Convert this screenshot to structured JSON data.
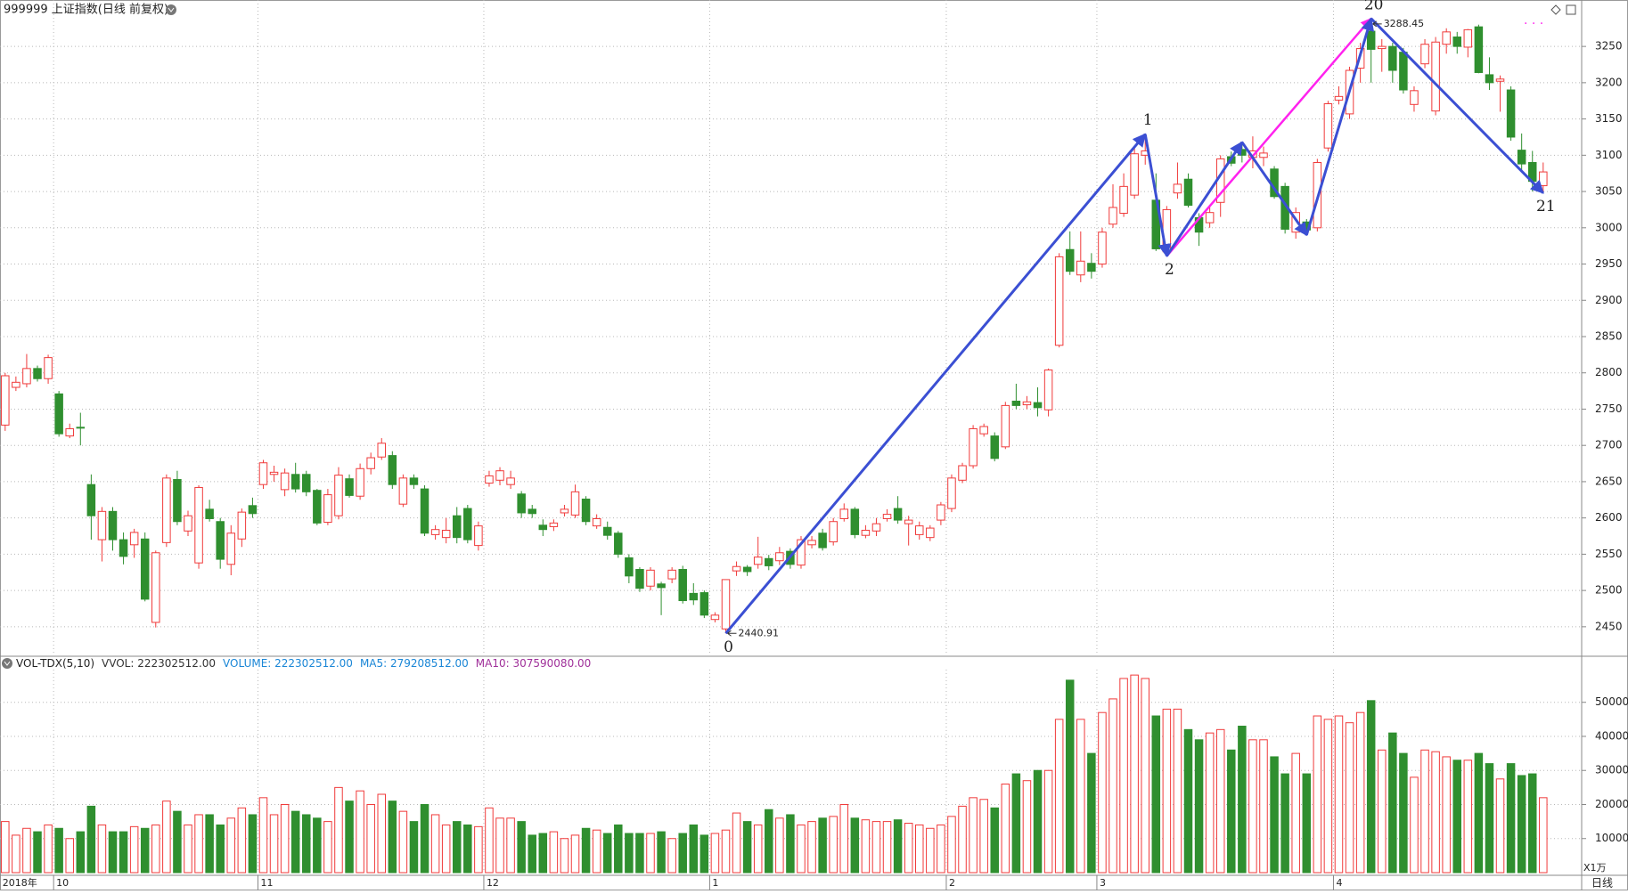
{
  "chart_data": [
    {
      "type": "candlestick",
      "title": "999999 上证指数(日线 前复权)",
      "categories": [
        "2018年",
        null,
        null,
        null,
        null,
        "10",
        null,
        null,
        null,
        null,
        null,
        null,
        null,
        null,
        null,
        null,
        null,
        null,
        null,
        null,
        null,
        null,
        null,
        null,
        "11",
        null,
        null,
        null,
        null,
        null,
        null,
        null,
        null,
        null,
        null,
        null,
        null,
        null,
        null,
        null,
        null,
        null,
        null,
        null,
        null,
        "12",
        null,
        null,
        null,
        null,
        null,
        null,
        null,
        null,
        null,
        null,
        null,
        null,
        null,
        null,
        null,
        null,
        null,
        null,
        null,
        null,
        "1",
        null,
        null,
        null,
        null,
        null,
        null,
        null,
        null,
        null,
        null,
        null,
        null,
        null,
        null,
        null,
        null,
        null,
        null,
        null,
        null,
        null,
        "2",
        null,
        null,
        null,
        null,
        null,
        null,
        null,
        null,
        null,
        null,
        null,
        null,
        null,
        "3",
        null,
        null,
        null,
        null,
        null,
        null,
        null,
        null,
        null,
        null,
        null,
        null,
        null,
        null,
        null,
        null,
        null,
        null,
        null,
        null,
        null,
        "4",
        null,
        null,
        null,
        null,
        null,
        null,
        null,
        null,
        null,
        null,
        null,
        null,
        null,
        null,
        null,
        null,
        null,
        null,
        null
      ],
      "open": [
        2728,
        2780,
        2785,
        2806,
        2792,
        2771,
        2713,
        2725,
        2646,
        2570,
        2609,
        2570,
        2563,
        2571,
        2456,
        2566,
        2653,
        2582,
        2538,
        2612,
        2595,
        2536,
        2571,
        2617,
        2646,
        2660,
        2639,
        2660,
        2660,
        2638,
        2594,
        2603,
        2654,
        2630,
        2668,
        2684,
        2686,
        2619,
        2655,
        2640,
        2577,
        2573,
        2603,
        2613,
        2562,
        2648,
        2652,
        2646,
        2633,
        2612,
        2590,
        2588,
        2607,
        2604,
        2626,
        2589,
        2587,
        2579,
        2545,
        2529,
        2506,
        2509,
        2516,
        2529,
        2496,
        2497,
        2460,
        2447,
        2527,
        2532,
        2536,
        2544,
        2541,
        2554,
        2535,
        2563,
        2579,
        2567,
        2599,
        2612,
        2576,
        2582,
        2599,
        2613,
        2592,
        2577,
        2573,
        2597,
        2613,
        2652,
        2672,
        2716,
        2713,
        2698,
        2761,
        2756,
        2759,
        2749,
        2838,
        2970,
        2935,
        2951,
        2950,
        3005,
        3020,
        3045,
        3100,
        3038,
        2967,
        3048,
        3067,
        3014,
        3007,
        3035,
        3098,
        3108,
        3097,
        3097,
        3081,
        3057,
        2994,
        3008,
        3000,
        3110,
        3176,
        3157,
        3220,
        3271,
        3247,
        3250,
        3242,
        3170,
        3226,
        3161,
        3253,
        3263,
        3249,
        3277,
        3211,
        3202,
        3190,
        3107,
        3090,
        3058
      ],
      "high": [
        2800,
        2795,
        2826,
        2810,
        2825,
        2775,
        2730,
        2745,
        2660,
        2615,
        2615,
        2580,
        2585,
        2580,
        2555,
        2660,
        2665,
        2610,
        2645,
        2625,
        2600,
        2590,
        2613,
        2628,
        2680,
        2672,
        2668,
        2676,
        2665,
        2640,
        2640,
        2670,
        2660,
        2675,
        2690,
        2710,
        2692,
        2660,
        2660,
        2645,
        2590,
        2600,
        2615,
        2618,
        2595,
        2665,
        2670,
        2665,
        2637,
        2618,
        2598,
        2598,
        2618,
        2646,
        2630,
        2605,
        2595,
        2582,
        2550,
        2532,
        2532,
        2512,
        2532,
        2534,
        2510,
        2500,
        2470,
        2515,
        2540,
        2535,
        2574,
        2549,
        2560,
        2558,
        2575,
        2575,
        2585,
        2600,
        2620,
        2615,
        2590,
        2600,
        2612,
        2630,
        2603,
        2595,
        2590,
        2622,
        2660,
        2676,
        2728,
        2730,
        2718,
        2760,
        2785,
        2768,
        2780,
        2806,
        2965,
        2995,
        2995,
        2965,
        3000,
        3060,
        3075,
        3110,
        3129,
        3075,
        3030,
        3090,
        3075,
        3020,
        3030,
        3100,
        3105,
        3118,
        3126,
        3112,
        3085,
        3062,
        3028,
        3012,
        3095,
        3175,
        3195,
        3222,
        3255,
        3288.45,
        3260,
        3255,
        3248,
        3195,
        3260,
        3263,
        3275,
        3270,
        3274,
        3280,
        3235,
        3210,
        3195,
        3130,
        3106,
        3090
      ],
      "low": [
        2720,
        2775,
        2780,
        2788,
        2785,
        2712,
        2710,
        2700,
        2570,
        2540,
        2555,
        2536,
        2545,
        2485,
        2449,
        2560,
        2590,
        2575,
        2530,
        2595,
        2530,
        2521,
        2560,
        2600,
        2640,
        2650,
        2630,
        2635,
        2630,
        2590,
        2590,
        2598,
        2628,
        2625,
        2660,
        2680,
        2640,
        2615,
        2640,
        2575,
        2570,
        2565,
        2565,
        2565,
        2555,
        2643,
        2645,
        2640,
        2600,
        2600,
        2575,
        2582,
        2602,
        2600,
        2590,
        2585,
        2570,
        2545,
        2510,
        2498,
        2500,
        2466,
        2510,
        2482,
        2480,
        2462,
        2456,
        2440.91,
        2520,
        2520,
        2530,
        2528,
        2535,
        2530,
        2530,
        2558,
        2555,
        2562,
        2595,
        2572,
        2572,
        2575,
        2595,
        2592,
        2562,
        2570,
        2568,
        2590,
        2608,
        2648,
        2668,
        2712,
        2678,
        2695,
        2750,
        2750,
        2740,
        2740,
        2835,
        2935,
        2925,
        2930,
        2945,
        3000,
        3015,
        3040,
        3087,
        2968,
        2961,
        3040,
        3028,
        2975,
        3000,
        3015,
        3085,
        3090,
        3082,
        3085,
        3040,
        2992,
        2985,
        2990,
        2995,
        3105,
        3170,
        3150,
        3200,
        3200,
        3215,
        3200,
        3185,
        3160,
        3220,
        3155,
        3240,
        3240,
        3235,
        3213,
        3190,
        3160,
        3120,
        3080,
        3050,
        3048
      ],
      "close": [
        2796,
        2787,
        2806,
        2792,
        2821,
        2716,
        2723,
        2724,
        2603,
        2609,
        2570,
        2547,
        2580,
        2488,
        2552,
        2655,
        2595,
        2603,
        2642,
        2599,
        2543,
        2579,
        2608,
        2606,
        2676,
        2663,
        2662,
        2640,
        2636,
        2593,
        2632,
        2659,
        2631,
        2668,
        2683,
        2703,
        2646,
        2655,
        2646,
        2579,
        2584,
        2583,
        2573,
        2570,
        2589,
        2658,
        2665,
        2655,
        2607,
        2606,
        2584,
        2593,
        2612,
        2636,
        2595,
        2599,
        2576,
        2550,
        2520,
        2503,
        2528,
        2504,
        2528,
        2486,
        2487,
        2466,
        2466,
        2515,
        2533,
        2526,
        2546,
        2534,
        2552,
        2536,
        2570,
        2569,
        2559,
        2595,
        2612,
        2577,
        2583,
        2592,
        2605,
        2597,
        2597,
        2589,
        2586,
        2618,
        2655,
        2672,
        2723,
        2726,
        2682,
        2755,
        2755,
        2760,
        2752,
        2804,
        2960,
        2940,
        2954,
        2940,
        2994,
        3028,
        3057,
        3102,
        3106,
        2971,
        3025,
        3060,
        3031,
        2994,
        3021,
        3095,
        3089,
        3100,
        3106,
        3103,
        3043,
        2998,
        3021,
        2997,
        3090,
        3171,
        3181,
        3217,
        3247,
        3246,
        3250,
        3217,
        3190,
        3189,
        3253,
        3256,
        3270,
        3250,
        3273,
        3214,
        3200,
        3205,
        3125,
        3088,
        3064,
        3077
      ],
      "up_color": "#f03a3a",
      "down_color": "#2f8f2f",
      "ylim": [
        2413,
        3314
      ],
      "yticks": [
        2450,
        2500,
        2550,
        2600,
        2650,
        2700,
        2750,
        2800,
        2850,
        2900,
        2950,
        3000,
        3050,
        3100,
        3150,
        3200,
        3250
      ],
      "grid": true,
      "waves": {
        "color": "#3b4fd3",
        "points": [
          {
            "label": "0",
            "value": 2440.91,
            "show_value": true
          },
          {
            "label": "1",
            "value": 3129
          },
          {
            "label": "2",
            "value": 2961
          },
          {
            "label": null,
            "value": 3118
          },
          {
            "label": null,
            "value": 2990
          },
          {
            "label": "20",
            "value": 3288.45,
            "show_value": true
          },
          {
            "label": "21",
            "value": 3048
          }
        ]
      },
      "trend": {
        "color": "#ff22ee",
        "points": [
          {
            "value": 2961
          },
          {
            "value": 3288.45
          }
        ]
      }
    },
    {
      "type": "bar",
      "title": "VOL-TDX(5,10)",
      "legend": [
        {
          "text": "VVOL: 222302512.00",
          "color": "#333333"
        },
        {
          "text": "VOLUME: 222302512.00",
          "color": "#1a86d6"
        },
        {
          "text": "MA5: 279208512.00",
          "color": "#1a86d6"
        },
        {
          "text": "MA10: 307590080.00",
          "color": "#a0309a"
        }
      ],
      "values": [
        15000,
        11000,
        13000,
        12000,
        14000,
        13000,
        10000,
        12000,
        19500,
        14000,
        12000,
        12000,
        13500,
        13000,
        14000,
        21000,
        18000,
        14000,
        17000,
        17000,
        14000,
        16000,
        19000,
        17000,
        22000,
        17000,
        20000,
        18000,
        17000,
        16000,
        15000,
        25000,
        21000,
        24000,
        20000,
        23000,
        21000,
        18000,
        15000,
        20000,
        17000,
        14000,
        15000,
        14000,
        13500,
        19000,
        16000,
        16000,
        15000,
        11000,
        11500,
        12000,
        10000,
        11000,
        13000,
        12500,
        11500,
        14000,
        11500,
        11500,
        11500,
        12000,
        10000,
        11500,
        14000,
        11000,
        11500,
        12500,
        17500,
        15000,
        14000,
        18500,
        16000,
        17000,
        14000,
        15000,
        16000,
        16500,
        20000,
        16000,
        15500,
        15000,
        15000,
        15500,
        14500,
        14000,
        13000,
        14000,
        16500,
        19500,
        22000,
        21500,
        19000,
        26000,
        29000,
        27000,
        30000,
        30000,
        45000,
        56500,
        45000,
        35000,
        47000,
        51000,
        57000,
        58000,
        57000,
        46000,
        48000,
        48000,
        42000,
        39000,
        41000,
        42000,
        36000,
        43000,
        39000,
        39000,
        34000,
        29000,
        35000,
        29000,
        46000,
        45000,
        46000,
        44000,
        47000,
        50500,
        36000,
        41000,
        35000,
        28000,
        36000,
        35500,
        34000,
        33000,
        33000,
        35000,
        32000,
        27500,
        32000,
        28500,
        29000,
        22000
      ],
      "ylim": [
        0,
        59600
      ],
      "yticks": [
        10000,
        20000,
        30000,
        40000,
        50000
      ],
      "grid": true,
      "unit_label": "X1万",
      "period": "日线"
    }
  ]
}
